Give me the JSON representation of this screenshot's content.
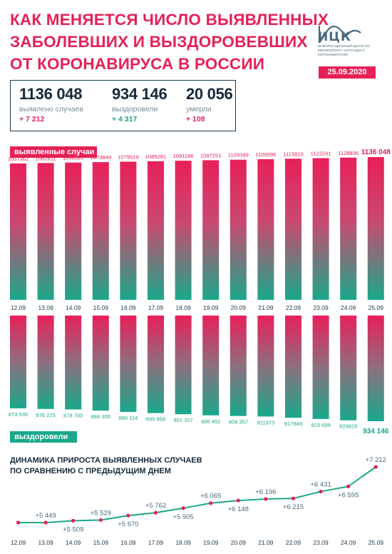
{
  "header": {
    "title_lines": [
      "КАК МЕНЯЕТСЯ ЧИСЛО ВЫЯВЛЕННЫХ",
      "ЗАБОЛЕВШИХ И ВЫЗДОРОВЕВШИХ",
      "ОТ КОРОНАВИРУСА В РОССИИ"
    ],
    "logo_name": "ИЦК",
    "logo_sub": "ИНФОРМАЦИОННЫЙ ЦЕНТР ПО МОНИТОРИНГУ СИТУАЦИИ С КОРОНАВИРУСОМ",
    "date": "25.09.2020"
  },
  "summary": {
    "cases": {
      "value": "1136 048",
      "label": "выявлено случаев",
      "delta": "+ 7 212"
    },
    "recovered": {
      "value": "934 146",
      "label": "выздоровели",
      "delta": "+ 4 317"
    },
    "deaths": {
      "value": "20 056",
      "label": "умерли",
      "delta": "+ 108"
    }
  },
  "colors": {
    "pink": "#e62157",
    "green": "#1aa88b",
    "navy": "#1d3a4f"
  },
  "chart_data": [
    {
      "type": "bar",
      "label": "выявленные случаи",
      "categories": [
        "12.09",
        "13.09",
        "14.09",
        "15.09",
        "16.09",
        "17.09",
        "18.09",
        "19.09",
        "20.09",
        "21.09",
        "22.09",
        "23.09",
        "24.09",
        "25.09"
      ],
      "values": [
        1057362,
        1062811,
        1068320,
        1073849,
        1079519,
        1085281,
        1091186,
        1097251,
        1103399,
        1109595,
        1115810,
        1122241,
        1128836,
        1136048
      ],
      "value_labels": [
        "1057362",
        "1062811",
        "1068320",
        "1073849",
        "1079519",
        "1085281",
        "1091186",
        "1097251",
        "1103399",
        "1109595",
        "1115810",
        "1122241",
        "1128836",
        "1136 048"
      ]
    },
    {
      "type": "bar",
      "label": "выздоровели",
      "categories": [
        "12.09",
        "13.09",
        "14.09",
        "15.09",
        "16.09",
        "17.09",
        "18.09",
        "19.09",
        "20.09",
        "21.09",
        "22.09",
        "23.09",
        "24.09",
        "25.09"
      ],
      "values": [
        873535,
        876225,
        878700,
        884305,
        890114,
        895868,
        901207,
        906462,
        909357,
        911973,
        917949,
        923699,
        929829,
        934146
      ],
      "value_labels": [
        "873 535",
        "876 225",
        "878 700",
        "884 305",
        "890 114",
        "895 868",
        "901 207",
        "906 462",
        "909 357",
        "911973",
        "917949",
        "923 699",
        "929829",
        "934 146"
      ]
    },
    {
      "type": "line",
      "title_lines": [
        "ДИНАМИКА ПРИРОСТА ВЫЯВЛЕННЫХ СЛУЧАЕВ",
        "ПО СРАВНЕНИЮ С ПРЕДЫДУЩИМ ДНЕМ"
      ],
      "categories": [
        "12.09",
        "13.09",
        "14.09",
        "15.09",
        "16.09",
        "17.09",
        "18.09",
        "19.09",
        "20.09",
        "21.09",
        "22.09",
        "23.09",
        "24.09",
        "25.09"
      ],
      "values": [
        5449,
        5449,
        5509,
        5529,
        5670,
        5762,
        5905,
        6065,
        6148,
        6196,
        6215,
        6431,
        6595,
        7212
      ],
      "point_labels": [
        "",
        "+5 449",
        "+5 509",
        "+5 529",
        "+5 670",
        "+5 762",
        "+5 905",
        "+6 065",
        "+6 148",
        "+6 196",
        "+6 215",
        "+6 431",
        "+6 595",
        "+7 212"
      ],
      "label_positions": [
        "",
        "above",
        "below",
        "above",
        "below",
        "above",
        "below",
        "above",
        "below",
        "above",
        "below",
        "above",
        "below",
        "above"
      ]
    }
  ]
}
